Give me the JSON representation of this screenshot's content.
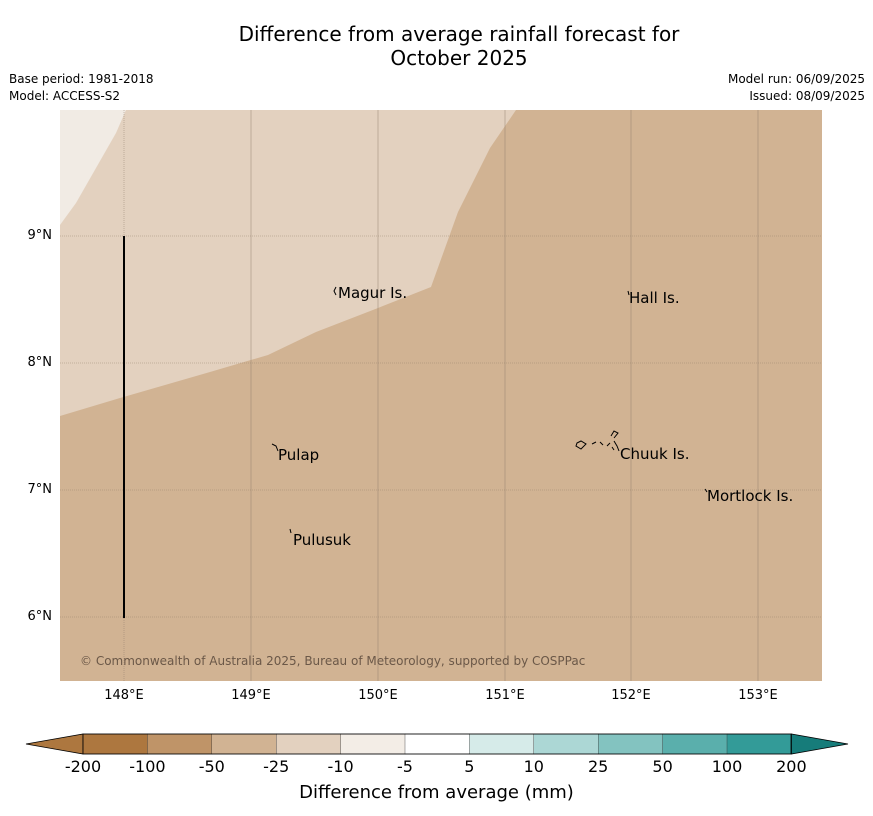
{
  "title_line1": "Difference from average rainfall forecast for",
  "title_line2": "October 2025",
  "base_period": "Base period: 1981-2018",
  "model": "Model: ACCESS-S2",
  "model_run": "Model run: 06/09/2025",
  "issued": "Issued: 08/09/2025",
  "lat_labels": [
    "9°N",
    "8°N",
    "7°N",
    "6°N"
  ],
  "lon_labels": [
    "148°E",
    "149°E",
    "150°E",
    "151°E",
    "152°E",
    "153°E"
  ],
  "places": [
    "Magur Is.",
    "Hall Is.",
    "Pulap",
    "Chuuk Is.",
    "Mortlock Is.",
    "Pulusuk"
  ],
  "copyright": "© Commonwealth of Australia 2025, Bureau of Meteorology, supported by COSPPac",
  "colorbar": {
    "title": "Difference from average (mm)",
    "ticks": [
      "-200",
      "-100",
      "-50",
      "-25",
      "-10",
      "-5",
      "5",
      "10",
      "25",
      "50",
      "100",
      "200"
    ],
    "colors": [
      "#ad773f",
      "#bf9468",
      "#d1b393",
      "#e3d1bf",
      "#f3ede6",
      "#ffffff",
      "#d6ebe9",
      "#acd7d5",
      "#83c3c0",
      "#5aafac",
      "#339b98",
      "#167c7a"
    ]
  },
  "field_colors": {
    "light": "#f1ebe4",
    "mid": "#e3d1bf",
    "base": "#d1b393"
  }
}
